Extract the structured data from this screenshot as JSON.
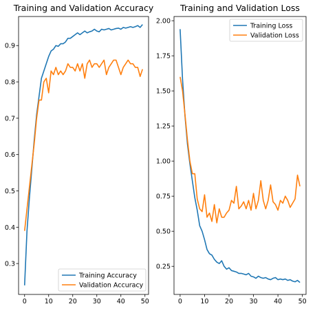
{
  "chart_data": [
    {
      "type": "line",
      "title": "Training and Validation Accuracy",
      "xlabel": "",
      "ylabel": "",
      "xlim": [
        -2.5,
        51.5
      ],
      "ylim": [
        0.215,
        0.98
      ],
      "xticks": [
        0,
        10,
        20,
        30,
        40,
        50
      ],
      "yticks": [
        0.3,
        0.4,
        0.5,
        0.6,
        0.7,
        0.8,
        0.9
      ],
      "grid": false,
      "legend_position": "lower-right",
      "series": [
        {
          "name": "Training Accuracy",
          "color": "#1f77b4",
          "x": [
            0,
            1,
            2,
            3,
            4,
            5,
            6,
            7,
            8,
            9,
            10,
            11,
            12,
            13,
            14,
            15,
            16,
            17,
            18,
            19,
            20,
            21,
            22,
            23,
            24,
            25,
            26,
            27,
            28,
            29,
            30,
            31,
            32,
            33,
            34,
            35,
            36,
            37,
            38,
            39,
            40,
            41,
            42,
            43,
            44,
            45,
            46,
            47,
            48,
            49
          ],
          "values": [
            0.24,
            0.39,
            0.48,
            0.56,
            0.64,
            0.71,
            0.76,
            0.81,
            0.83,
            0.85,
            0.87,
            0.885,
            0.89,
            0.9,
            0.898,
            0.905,
            0.905,
            0.91,
            0.92,
            0.92,
            0.925,
            0.93,
            0.935,
            0.93,
            0.935,
            0.94,
            0.935,
            0.938,
            0.94,
            0.945,
            0.94,
            0.938,
            0.945,
            0.943,
            0.945,
            0.947,
            0.943,
            0.945,
            0.947,
            0.948,
            0.945,
            0.95,
            0.948,
            0.95,
            0.952,
            0.95,
            0.952,
            0.955,
            0.95,
            0.958
          ]
        },
        {
          "name": "Validation Accuracy",
          "color": "#ff7f0e",
          "x": [
            0,
            1,
            2,
            3,
            4,
            5,
            6,
            7,
            8,
            9,
            10,
            11,
            12,
            13,
            14,
            15,
            16,
            17,
            18,
            19,
            20,
            21,
            22,
            23,
            24,
            25,
            26,
            27,
            28,
            29,
            30,
            31,
            32,
            33,
            34,
            35,
            36,
            37,
            38,
            39,
            40,
            41,
            42,
            43,
            44,
            45,
            46,
            47,
            48,
            49
          ],
          "values": [
            0.39,
            0.45,
            0.51,
            0.57,
            0.63,
            0.7,
            0.75,
            0.75,
            0.8,
            0.81,
            0.77,
            0.83,
            0.82,
            0.84,
            0.82,
            0.83,
            0.82,
            0.83,
            0.85,
            0.84,
            0.84,
            0.83,
            0.85,
            0.83,
            0.85,
            0.81,
            0.85,
            0.86,
            0.84,
            0.85,
            0.85,
            0.84,
            0.85,
            0.86,
            0.82,
            0.84,
            0.85,
            0.86,
            0.86,
            0.84,
            0.82,
            0.84,
            0.85,
            0.86,
            0.85,
            0.85,
            0.84,
            0.84,
            0.815,
            0.835
          ]
        }
      ]
    },
    {
      "type": "line",
      "title": "Training and Validation Loss",
      "xlabel": "",
      "ylabel": "",
      "xlim": [
        -2.5,
        51.5
      ],
      "ylim": [
        0.05,
        2.03
      ],
      "xticks": [
        0,
        10,
        20,
        30,
        40,
        50
      ],
      "yticks": [
        0.25,
        0.5,
        0.75,
        1.0,
        1.25,
        1.5,
        1.75,
        2.0
      ],
      "ytick_labels": [
        "0.25",
        "0.50",
        "0.75",
        "1.00",
        "1.25",
        "1.50",
        "1.75",
        "2.00"
      ],
      "grid": false,
      "legend_position": "top-right",
      "series": [
        {
          "name": "Training Loss",
          "color": "#1f77b4",
          "x": [
            0,
            1,
            2,
            3,
            4,
            5,
            6,
            7,
            8,
            9,
            10,
            11,
            12,
            13,
            14,
            15,
            16,
            17,
            18,
            19,
            20,
            21,
            22,
            23,
            24,
            25,
            26,
            27,
            28,
            29,
            30,
            31,
            32,
            33,
            34,
            35,
            36,
            37,
            38,
            39,
            40,
            41,
            42,
            43,
            44,
            45,
            46,
            47,
            48,
            49
          ],
          "values": [
            1.94,
            1.58,
            1.32,
            1.12,
            0.98,
            0.86,
            0.74,
            0.65,
            0.54,
            0.5,
            0.44,
            0.37,
            0.34,
            0.33,
            0.3,
            0.28,
            0.27,
            0.29,
            0.25,
            0.23,
            0.24,
            0.22,
            0.215,
            0.21,
            0.2,
            0.2,
            0.195,
            0.19,
            0.2,
            0.18,
            0.175,
            0.165,
            0.18,
            0.17,
            0.165,
            0.17,
            0.16,
            0.155,
            0.165,
            0.17,
            0.155,
            0.16,
            0.155,
            0.16,
            0.15,
            0.155,
            0.145,
            0.14,
            0.15,
            0.135
          ]
        },
        {
          "name": "Validation Loss",
          "color": "#ff7f0e",
          "x": [
            0,
            1,
            2,
            3,
            4,
            5,
            6,
            7,
            8,
            9,
            10,
            11,
            12,
            13,
            14,
            15,
            16,
            17,
            18,
            19,
            20,
            21,
            22,
            23,
            24,
            25,
            26,
            27,
            28,
            29,
            30,
            31,
            32,
            33,
            34,
            35,
            36,
            37,
            38,
            39,
            40,
            41,
            42,
            43,
            44,
            45,
            46,
            47,
            48,
            49
          ],
          "values": [
            1.6,
            1.5,
            1.33,
            1.15,
            1.0,
            0.91,
            0.91,
            0.73,
            0.66,
            0.64,
            0.76,
            0.6,
            0.63,
            0.57,
            0.69,
            0.56,
            0.66,
            0.6,
            0.6,
            0.63,
            0.65,
            0.72,
            0.7,
            0.82,
            0.66,
            0.68,
            0.71,
            0.66,
            0.72,
            0.65,
            0.77,
            0.66,
            0.72,
            0.86,
            0.72,
            0.66,
            0.72,
            0.83,
            0.71,
            0.69,
            0.65,
            0.72,
            0.7,
            0.75,
            0.72,
            0.67,
            0.7,
            0.73,
            0.9,
            0.82
          ]
        }
      ]
    }
  ]
}
